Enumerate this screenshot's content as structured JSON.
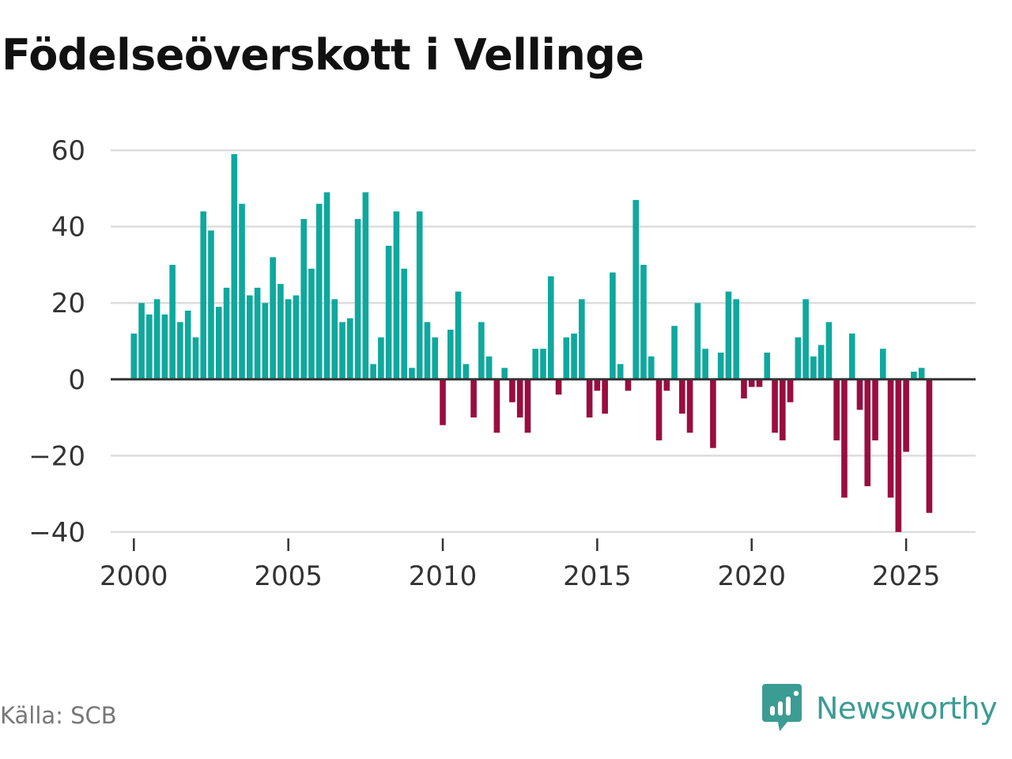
{
  "title": "Födelseöverskott i Vellinge",
  "source": "Källa: SCB",
  "brand": {
    "name": "Newsworthy",
    "icon": "newsworthy-logo-icon",
    "color": "#3b9c93"
  },
  "colors": {
    "positive": "#0fa89e",
    "negative": "#990d3f",
    "grid": "#dddddd",
    "zero_line": "#333333"
  },
  "chart_data": {
    "type": "bar",
    "title": "Födelseöverskott i Vellinge",
    "xlabel": "",
    "ylabel": "",
    "ylim": [
      -45,
      65
    ],
    "xlim": [
      1999.25,
      2027.25
    ],
    "yticks": [
      -40,
      -20,
      0,
      20,
      40,
      60
    ],
    "ytick_labels": [
      "−40",
      "−20",
      "0",
      "20",
      "40",
      "60"
    ],
    "xticks": [
      2000,
      2005,
      2010,
      2015,
      2020,
      2025
    ],
    "xtick_labels": [
      "2000",
      "2005",
      "2010",
      "2015",
      "2020",
      "2025"
    ],
    "grid": true,
    "legend": "none",
    "frequency": "quarterly",
    "start": 2000.0,
    "step": 0.25,
    "values": [
      12,
      20,
      17,
      21,
      17,
      30,
      15,
      18,
      11,
      44,
      39,
      19,
      24,
      59,
      46,
      22,
      24,
      20,
      32,
      25,
      21,
      22,
      42,
      29,
      46,
      49,
      21,
      15,
      16,
      42,
      49,
      4,
      11,
      35,
      44,
      29,
      3,
      44,
      15,
      11,
      -12,
      13,
      23,
      4,
      -10,
      15,
      6,
      -14,
      3,
      -6,
      -10,
      -14,
      8,
      8,
      27,
      -4,
      11,
      12,
      21,
      -10,
      -3,
      -9,
      28,
      4,
      -3,
      47,
      30,
      6,
      -16,
      -3,
      14,
      -9,
      -14,
      20,
      8,
      -18,
      7,
      23,
      21,
      -5,
      -2,
      -2,
      7,
      -14,
      -16,
      -6,
      11,
      21,
      6,
      9,
      15,
      -16,
      -31,
      12,
      -8,
      -28,
      -16,
      8,
      -31,
      -40,
      -19,
      2,
      3,
      -35
    ]
  }
}
